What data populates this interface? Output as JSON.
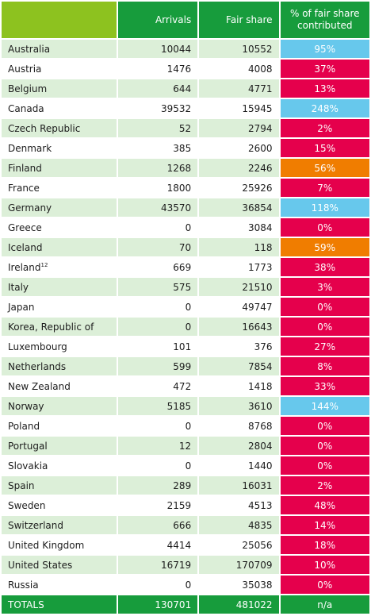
{
  "headers": {
    "country": "",
    "arrivals": "Arrivals",
    "fair_share": "Fair share",
    "pct_line1": "% of fair share",
    "pct_line2": "contributed"
  },
  "colors": {
    "header_green": "#179c3c",
    "header_lime": "#8dc21f",
    "row_tint": "#dcefd8",
    "red": "#e5004c",
    "blue": "#67c8ec",
    "orange": "#f07d00"
  },
  "rows": [
    {
      "country": "Australia",
      "sup": "",
      "arrivals": "10044",
      "fair_share": "10552",
      "pct": "95%",
      "color": "blue"
    },
    {
      "country": "Austria",
      "sup": "",
      "arrivals": "1476",
      "fair_share": "4008",
      "pct": "37%",
      "color": "red"
    },
    {
      "country": "Belgium",
      "sup": "",
      "arrivals": "644",
      "fair_share": "4771",
      "pct": "13%",
      "color": "red"
    },
    {
      "country": "Canada",
      "sup": "",
      "arrivals": "39532",
      "fair_share": "15945",
      "pct": "248%",
      "color": "blue"
    },
    {
      "country": "Czech Republic",
      "sup": "",
      "arrivals": "52",
      "fair_share": "2794",
      "pct": "2%",
      "color": "red"
    },
    {
      "country": "Denmark",
      "sup": "",
      "arrivals": "385",
      "fair_share": "2600",
      "pct": "15%",
      "color": "red"
    },
    {
      "country": "Finland",
      "sup": "",
      "arrivals": "1268",
      "fair_share": "2246",
      "pct": "56%",
      "color": "orange"
    },
    {
      "country": "France",
      "sup": "",
      "arrivals": "1800",
      "fair_share": "25926",
      "pct": "7%",
      "color": "red"
    },
    {
      "country": "Germany",
      "sup": "",
      "arrivals": "43570",
      "fair_share": "36854",
      "pct": "118%",
      "color": "blue"
    },
    {
      "country": "Greece",
      "sup": "",
      "arrivals": "0",
      "fair_share": "3084",
      "pct": "0%",
      "color": "red"
    },
    {
      "country": "Iceland",
      "sup": "",
      "arrivals": "70",
      "fair_share": "118",
      "pct": "59%",
      "color": "orange"
    },
    {
      "country": "Ireland",
      "sup": "12",
      "arrivals": "669",
      "fair_share": "1773",
      "pct": "38%",
      "color": "red"
    },
    {
      "country": "Italy",
      "sup": "",
      "arrivals": "575",
      "fair_share": "21510",
      "pct": "3%",
      "color": "red"
    },
    {
      "country": "Japan",
      "sup": "",
      "arrivals": "0",
      "fair_share": "49747",
      "pct": "0%",
      "color": "red"
    },
    {
      "country": "Korea, Republic of",
      "sup": "",
      "arrivals": "0",
      "fair_share": "16643",
      "pct": "0%",
      "color": "red"
    },
    {
      "country": "Luxembourg",
      "sup": "",
      "arrivals": "101",
      "fair_share": "376",
      "pct": "27%",
      "color": "red"
    },
    {
      "country": "Netherlands",
      "sup": "",
      "arrivals": "599",
      "fair_share": "7854",
      "pct": "8%",
      "color": "red"
    },
    {
      "country": "New Zealand",
      "sup": "",
      "arrivals": "472",
      "fair_share": "1418",
      "pct": "33%",
      "color": "red"
    },
    {
      "country": "Norway",
      "sup": "",
      "arrivals": "5185",
      "fair_share": "3610",
      "pct": "144%",
      "color": "blue"
    },
    {
      "country": "Poland",
      "sup": "",
      "arrivals": "0",
      "fair_share": "8768",
      "pct": "0%",
      "color": "red"
    },
    {
      "country": "Portugal",
      "sup": "",
      "arrivals": "12",
      "fair_share": "2804",
      "pct": "0%",
      "color": "red"
    },
    {
      "country": "Slovakia",
      "sup": "",
      "arrivals": "0",
      "fair_share": "1440",
      "pct": "0%",
      "color": "red"
    },
    {
      "country": "Spain",
      "sup": "",
      "arrivals": "289",
      "fair_share": "16031",
      "pct": "2%",
      "color": "red"
    },
    {
      "country": "Sweden",
      "sup": "",
      "arrivals": "2159",
      "fair_share": "4513",
      "pct": "48%",
      "color": "red"
    },
    {
      "country": "Switzerland",
      "sup": "",
      "arrivals": "666",
      "fair_share": "4835",
      "pct": "14%",
      "color": "red"
    },
    {
      "country": "United Kingdom",
      "sup": "",
      "arrivals": "4414",
      "fair_share": "25056",
      "pct": "18%",
      "color": "red"
    },
    {
      "country": "United States",
      "sup": "",
      "arrivals": "16719",
      "fair_share": "170709",
      "pct": "10%",
      "color": "red"
    },
    {
      "country": "Russia",
      "sup": "",
      "arrivals": "0",
      "fair_share": "35038",
      "pct": "0%",
      "color": "red"
    }
  ],
  "totals": {
    "label": "TOTALS",
    "arrivals": "130701",
    "fair_share": "481022",
    "pct": "n/a"
  }
}
